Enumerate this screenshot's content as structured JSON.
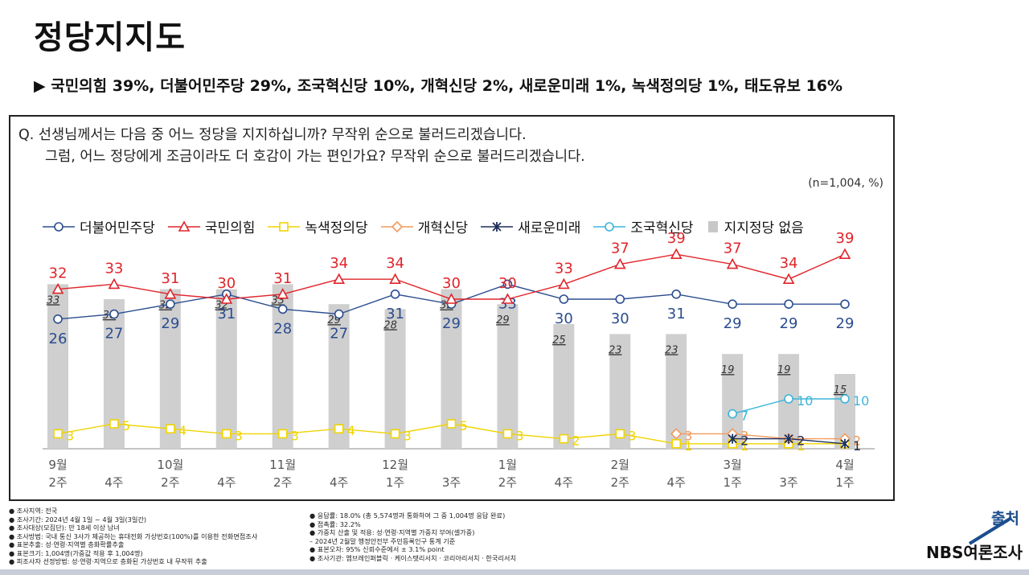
{
  "page": {
    "title": "정당지지도",
    "summary": "▶ 국민의힘 39%, 더불어민주당 29%, 조국혁신당 10%, 개혁신당 2%, 새로운미래 1%, 녹색정의당 1%, 태도유보 16%"
  },
  "question": {
    "line1": "Q. 선생님께서는 다음 중 어느 정당을 지지하십니까? 무작위 순으로 불러드리겠습니다.",
    "line2": "그럼, 어느 정당에게 조금이라도 더 호감이 가는 편인가요? 무작위 순으로 불러드리겠습니다.",
    "sample": "(n=1,004, %)"
  },
  "legend": [
    {
      "name": "더불어민주당",
      "color": "#2b4d8f",
      "marker": "circle"
    },
    {
      "name": "국민의힘",
      "color": "#e0242a",
      "marker": "triangle"
    },
    {
      "name": "녹색정의당",
      "color": "#f0d400",
      "marker": "square"
    },
    {
      "name": "개혁신당",
      "color": "#f29a5c",
      "marker": "diamond"
    },
    {
      "name": "새로운미래",
      "color": "#1f2f5c",
      "marker": "x"
    },
    {
      "name": "조국혁신당",
      "color": "#3cb5d9",
      "marker": "circle"
    },
    {
      "name": "지지정당 없음",
      "color": "#c8c8c8",
      "marker": "bar"
    }
  ],
  "chart_data": {
    "type": "line",
    "title": "",
    "categories": [
      [
        "9월",
        "2주"
      ],
      [
        "",
        "4주"
      ],
      [
        "10월",
        "2주"
      ],
      [
        "",
        "4주"
      ],
      [
        "11월",
        "2주"
      ],
      [
        "",
        "4주"
      ],
      [
        "12월",
        "1주"
      ],
      [
        "",
        "3주"
      ],
      [
        "1월",
        "2주"
      ],
      [
        "",
        "4주"
      ],
      [
        "2월",
        "2주"
      ],
      [
        "",
        "4주"
      ],
      [
        "3월",
        "1주"
      ],
      [
        "",
        "3주"
      ],
      [
        "4월",
        "1주"
      ]
    ],
    "ylim": [
      0,
      45
    ],
    "bars": {
      "name": "지지정당 없음",
      "color": "#cfcfcf",
      "values": [
        33,
        30,
        32,
        32,
        33,
        29,
        28,
        32,
        29,
        25,
        23,
        23,
        19,
        19,
        15
      ]
    },
    "series": [
      {
        "name": "더불어민주당",
        "color": "#2b4d8f",
        "marker": "circle",
        "label_pos": "below",
        "values": [
          26,
          27,
          29,
          31,
          28,
          27,
          31,
          29,
          33,
          30,
          30,
          31,
          29,
          29,
          29
        ]
      },
      {
        "name": "국민의힘",
        "color": "#e0242a",
        "marker": "triangle",
        "label_pos": "above",
        "values": [
          32,
          33,
          31,
          30,
          31,
          34,
          34,
          30,
          30,
          33,
          37,
          39,
          37,
          34,
          39
        ]
      },
      {
        "name": "녹색정의당",
        "color": "#f0d400",
        "marker": "square",
        "label_pos": "right",
        "values": [
          3,
          5,
          4,
          3,
          3,
          4,
          3,
          5,
          3,
          2,
          3,
          1,
          1,
          1,
          1
        ]
      },
      {
        "name": "개혁신당",
        "color": "#f29a5c",
        "marker": "diamond",
        "label_pos": "right",
        "values": [
          null,
          null,
          null,
          null,
          null,
          null,
          null,
          null,
          null,
          null,
          null,
          3,
          3,
          2,
          2
        ]
      },
      {
        "name": "새로운미래",
        "color": "#1f2f5c",
        "marker": "x",
        "label_pos": "right",
        "values": [
          null,
          null,
          null,
          null,
          null,
          null,
          null,
          null,
          null,
          null,
          null,
          null,
          2,
          2,
          1
        ]
      },
      {
        "name": "조국혁신당",
        "color": "#3cb5d9",
        "marker": "circle",
        "label_pos": "right",
        "values": [
          null,
          null,
          null,
          null,
          null,
          null,
          null,
          null,
          null,
          null,
          null,
          null,
          7,
          10,
          10
        ]
      }
    ]
  },
  "notes": {
    "left": [
      "● 조사지역: 전국",
      "● 조사기간: 2024년 4월 1일 ~ 4월 3일(3일간)",
      "● 조사대상(모집단): 만 18세 이상 남녀",
      "● 조사방법: 국내 통신 3사가 제공하는 휴대전화 가상번호(100%)를 이용한 전화면접조사",
      "● 표본추출: 성·연령·지역별 층화확률추출",
      "● 표본크기: 1,004명(가중값 적용 후 1,004명)",
      "● 피조사자 선정방법: 성·연령·지역으로 층화된 가상번호 내 무작위 추출"
    ],
    "right": [
      "● 응답률: 18.0% (총 5,574명과 통화하여 그 중 1,004명 응답 완료)",
      "● 접촉률: 32.2%",
      "● 가중치 산출 및 적용: 성·연령·지역별 가중치 부여(셀가중)",
      "– 2024년 2월말 행정안전부 주민등록인구 통계 기준",
      "● 표본오차: 95% 신뢰수준에서 ± 3.1% point",
      "● 조사기관: 엠브레인퍼블릭 · 케이스탯리서치 · 코리아리서치 · 한국리서치"
    ]
  },
  "source": {
    "label": "출처",
    "name": "NBS여론조사"
  }
}
